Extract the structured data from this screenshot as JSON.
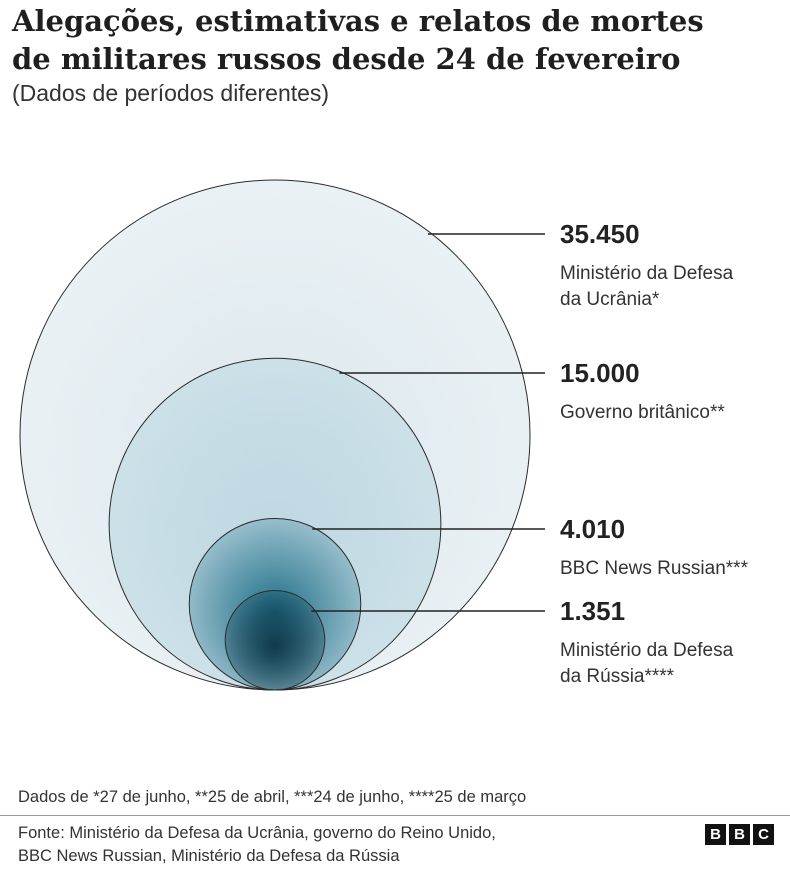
{
  "title_line1": "Alegações, estimativas e relatos de mortes",
  "title_line2": "de militares russos desde 24 de fevereiro",
  "subtitle": "(Dados de períodos diferentes)",
  "chart_data": {
    "type": "nested-circles (area proportional)",
    "series": [
      {
        "value": 35450,
        "value_label": "35.450",
        "label_lines": [
          "Ministério da Defesa",
          "da Ucrânia*"
        ],
        "color": "#d9e6ec"
      },
      {
        "value": 15000,
        "value_label": "15.000",
        "label_lines": [
          "Governo britânico**"
        ],
        "color": "#bcd7e1"
      },
      {
        "value": 4010,
        "value_label": "4.010",
        "label_lines": [
          "BBC News Russian***"
        ],
        "color": "#1f6f88"
      },
      {
        "value": 1351,
        "value_label": "1.351",
        "label_lines": [
          "Ministério da Defesa",
          "da Rússia****"
        ],
        "color": "#0e3a4b"
      }
    ]
  },
  "note": "Dados de *27 de junho, **25 de abril, ***24 de junho, ****25 de março",
  "source_line1": "Fonte: Ministério da Defesa da Ucrânia, governo do Reino Unido,",
  "source_line2": "BBC News Russian, Ministério da Defesa da Rússia",
  "logo_letters": [
    "B",
    "B",
    "C"
  ]
}
